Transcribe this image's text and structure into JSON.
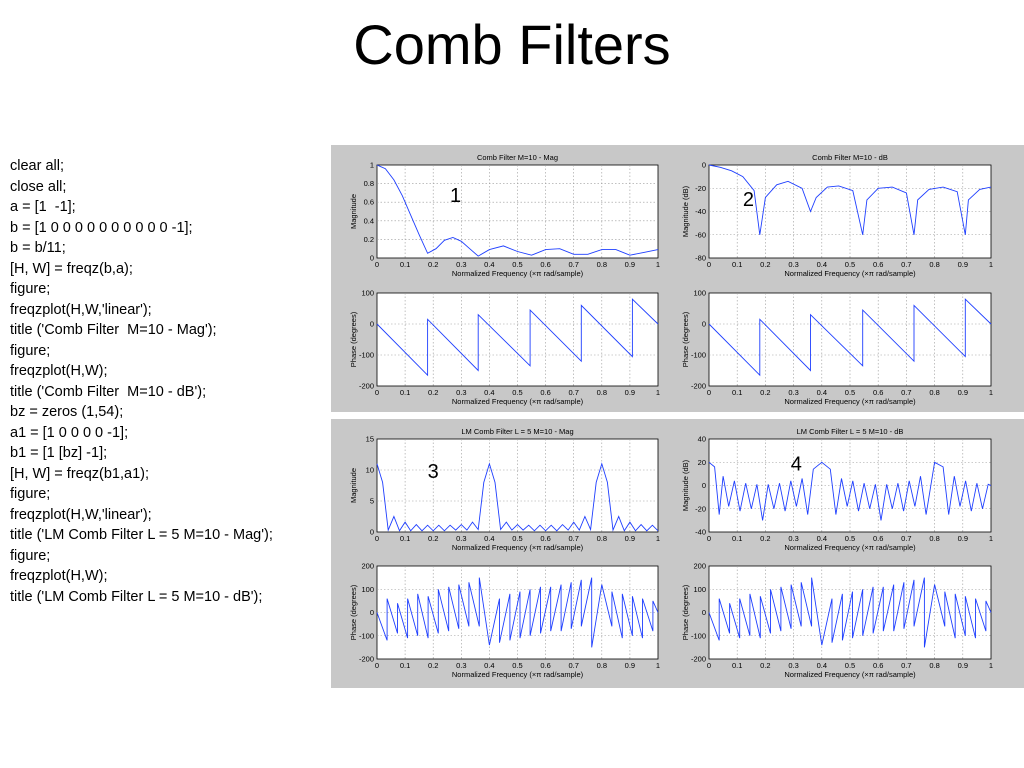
{
  "slide_title": "Comb Filters",
  "code_lines": [
    "clear all;",
    "close all;",
    "a = [1  -1];",
    "b = [1 0 0 0 0 0 0 0 0 0 0 -1];",
    "b = b/11;",
    "[H, W] = freqz(b,a);",
    "figure;",
    "freqzplot(H,W,'linear');",
    "title ('Comb Filter  M=10 - Mag');",
    "figure;",
    "freqzplot(H,W);",
    "title ('Comb Filter  M=10 - dB');",
    "bz = zeros (1,54);",
    "a1 = [1 0 0 0 0 -1];",
    "b1 = [1 [bz] -1];",
    "[H, W] = freqz(b1,a1);",
    "figure;",
    "freqzplot(H,W,'linear');",
    "title ('LM Comb Filter L = 5 M=10 - Mag');",
    "figure;",
    "freqzplot(H,W);",
    "title ('LM Comb Filter L = 5 M=10 - dB');"
  ],
  "colors": {
    "curve": "#1f3fff",
    "panel_bg": "#c8c8c8",
    "grid": "#9a9a9a"
  },
  "chart_data": [
    {
      "type": "line",
      "title": "Comb Filter  M=10 - Mag",
      "xlabel": "Normalized Frequency  (×π rad/sample)",
      "ylabel": "Magnitude",
      "xlim": [
        0,
        1
      ],
      "ylim": [
        0,
        1
      ],
      "xticks": [
        0,
        0.1,
        0.2,
        0.3,
        0.4,
        0.5,
        0.6,
        0.7,
        0.8,
        0.9,
        1
      ],
      "xtick_labels": [
        "0",
        "0.1",
        "0.2",
        "0.3",
        "0.4",
        "0.5",
        "0.6",
        "0.7",
        "0.8",
        "0.9",
        "1"
      ],
      "yticks": [
        0,
        0.2,
        0.4,
        0.6,
        0.8,
        1
      ],
      "ytick_labels": [
        "0",
        "0.2",
        "0.4",
        "0.6",
        "0.8",
        "1"
      ],
      "grid": true,
      "annotation": "1",
      "series": [
        {
          "x": [
            0,
            0.03,
            0.06,
            0.09,
            0.12,
            0.15,
            0.18,
            0.21,
            0.24,
            0.27,
            0.3,
            0.33,
            0.36,
            0.4,
            0.45,
            0.5,
            0.55,
            0.6,
            0.65,
            0.7,
            0.75,
            0.8,
            0.85,
            0.9,
            0.95,
            1
          ],
          "y": [
            1,
            0.96,
            0.84,
            0.67,
            0.46,
            0.25,
            0.05,
            0.1,
            0.19,
            0.22,
            0.18,
            0.1,
            0.02,
            0.09,
            0.13,
            0.07,
            0.03,
            0.09,
            0.1,
            0.04,
            0.04,
            0.09,
            0.09,
            0.03,
            0.06,
            0.09
          ]
        }
      ]
    },
    {
      "type": "line",
      "title": "Comb Filter  M=10 - dB",
      "xlabel": "Normalized Frequency  (×π rad/sample)",
      "ylabel": "Magnitude (dB)",
      "xlim": [
        0,
        1
      ],
      "ylim": [
        -80,
        0
      ],
      "xticks": [
        0,
        0.1,
        0.2,
        0.3,
        0.4,
        0.5,
        0.6,
        0.7,
        0.8,
        0.9,
        1
      ],
      "xtick_labels": [
        "0",
        "0.1",
        "0.2",
        "0.3",
        "0.4",
        "0.5",
        "0.6",
        "0.7",
        "0.8",
        "0.9",
        "1"
      ],
      "yticks": [
        -80,
        -60,
        -40,
        -20,
        0
      ],
      "ytick_labels": [
        "-80",
        "-60",
        "-40",
        "-20",
        "0"
      ],
      "grid": true,
      "annotation": "2",
      "series": [
        {
          "x": [
            0,
            0.04,
            0.08,
            0.12,
            0.16,
            0.18,
            0.2,
            0.24,
            0.28,
            0.33,
            0.36,
            0.38,
            0.42,
            0.46,
            0.51,
            0.545,
            0.56,
            0.6,
            0.65,
            0.7,
            0.727,
            0.74,
            0.78,
            0.83,
            0.88,
            0.909,
            0.92,
            0.96,
            1
          ],
          "y": [
            0,
            -2,
            -5,
            -10,
            -22,
            -60,
            -28,
            -17,
            -14,
            -20,
            -40,
            -28,
            -19,
            -18,
            -22,
            -60,
            -30,
            -20,
            -19,
            -24,
            -60,
            -30,
            -21,
            -19,
            -23,
            -60,
            -30,
            -21,
            -19
          ]
        }
      ]
    },
    {
      "type": "line",
      "title": "",
      "xlabel": "Normalized Frequency  (×π rad/sample)",
      "ylabel": "Phase (degrees)",
      "xlim": [
        0,
        1
      ],
      "ylim": [
        -200,
        100
      ],
      "xticks": [
        0,
        0.1,
        0.2,
        0.3,
        0.4,
        0.5,
        0.6,
        0.7,
        0.8,
        0.9,
        1
      ],
      "xtick_labels": [
        "0",
        "0.1",
        "0.2",
        "0.3",
        "0.4",
        "0.5",
        "0.6",
        "0.7",
        "0.8",
        "0.9",
        "1"
      ],
      "yticks": [
        -200,
        -100,
        0,
        100
      ],
      "ytick_labels": [
        "-200",
        "-100",
        "0",
        "100"
      ],
      "grid": true,
      "series": [
        {
          "x": [
            0,
            0.18,
            0.18,
            0.36,
            0.36,
            0.545,
            0.545,
            0.727,
            0.727,
            0.909,
            0.909,
            1
          ],
          "y": [
            0,
            -165,
            15,
            -150,
            30,
            -135,
            45,
            -120,
            60,
            -105,
            80,
            0
          ]
        }
      ]
    },
    {
      "type": "line",
      "title": "",
      "xlabel": "Normalized Frequency  (×π rad/sample)",
      "ylabel": "Phase (degrees)",
      "xlim": [
        0,
        1
      ],
      "ylim": [
        -200,
        100
      ],
      "xticks": [
        0,
        0.1,
        0.2,
        0.3,
        0.4,
        0.5,
        0.6,
        0.7,
        0.8,
        0.9,
        1
      ],
      "xtick_labels": [
        "0",
        "0.1",
        "0.2",
        "0.3",
        "0.4",
        "0.5",
        "0.6",
        "0.7",
        "0.8",
        "0.9",
        "1"
      ],
      "yticks": [
        -200,
        -100,
        0,
        100
      ],
      "ytick_labels": [
        "-200",
        "-100",
        "0",
        "100"
      ],
      "grid": true,
      "series": [
        {
          "x": [
            0,
            0.18,
            0.18,
            0.36,
            0.36,
            0.545,
            0.545,
            0.727,
            0.727,
            0.909,
            0.909,
            1
          ],
          "y": [
            0,
            -165,
            15,
            -150,
            30,
            -135,
            45,
            -120,
            60,
            -105,
            80,
            0
          ]
        }
      ]
    },
    {
      "type": "line",
      "title": "LM Comb Filter L = 5 M=10 - Mag",
      "xlabel": "Normalized Frequency  (×π rad/sample)",
      "ylabel": "Magnitude",
      "xlim": [
        0,
        1
      ],
      "ylim": [
        0,
        15
      ],
      "xticks": [
        0,
        0.1,
        0.2,
        0.3,
        0.4,
        0.5,
        0.6,
        0.7,
        0.8,
        0.9,
        1
      ],
      "xtick_labels": [
        "0",
        "0.1",
        "0.2",
        "0.3",
        "0.4",
        "0.5",
        "0.6",
        "0.7",
        "0.8",
        "0.9",
        "1"
      ],
      "yticks": [
        0,
        5,
        10,
        15
      ],
      "ytick_labels": [
        "0",
        "5",
        "10",
        "15"
      ],
      "grid": true,
      "annotation": "3",
      "series": [
        {
          "x": [
            0,
            0.02,
            0.04,
            0.06,
            0.08,
            0.1,
            0.12,
            0.14,
            0.16,
            0.18,
            0.2,
            0.22,
            0.24,
            0.26,
            0.28,
            0.3,
            0.32,
            0.34,
            0.36,
            0.38,
            0.4,
            0.42,
            0.44,
            0.46,
            0.48,
            0.5,
            0.52,
            0.54,
            0.56,
            0.58,
            0.6,
            0.62,
            0.64,
            0.66,
            0.68,
            0.7,
            0.72,
            0.74,
            0.76,
            0.78,
            0.8,
            0.82,
            0.84,
            0.86,
            0.88,
            0.9,
            0.92,
            0.94,
            0.96,
            0.98,
            1
          ],
          "y": [
            11,
            8,
            0.3,
            2.5,
            0.2,
            1.6,
            0.2,
            1.2,
            0.2,
            1.1,
            0.2,
            1.1,
            0.2,
            1.1,
            0.3,
            1.2,
            0.3,
            1.6,
            0.4,
            8,
            11,
            8,
            0.4,
            1.6,
            0.3,
            1.2,
            0.3,
            1.1,
            0.2,
            1.1,
            0.2,
            1.1,
            0.2,
            1.2,
            0.3,
            1.6,
            0.3,
            2.5,
            0.4,
            8,
            11,
            8,
            0.3,
            2.5,
            0.2,
            1.6,
            0.2,
            1.2,
            0.2,
            1.1,
            0.2
          ]
        }
      ]
    },
    {
      "type": "line",
      "title": "LM Comb Filter L = 5 M=10 - dB",
      "xlabel": "Normalized Frequency  (×π rad/sample)",
      "ylabel": "Magnitude (dB)",
      "xlim": [
        0,
        1
      ],
      "ylim": [
        -40,
        40
      ],
      "xticks": [
        0,
        0.1,
        0.2,
        0.3,
        0.4,
        0.5,
        0.6,
        0.7,
        0.8,
        0.9,
        1
      ],
      "xtick_labels": [
        "0",
        "0.1",
        "0.2",
        "0.3",
        "0.4",
        "0.5",
        "0.6",
        "0.7",
        "0.8",
        "0.9",
        "1"
      ],
      "yticks": [
        -40,
        -20,
        0,
        20,
        40
      ],
      "ytick_labels": [
        "-40",
        "-20",
        "0",
        "20",
        "40"
      ],
      "grid": true,
      "annotation": "4",
      "series": [
        {
          "x": [
            0,
            0.02,
            0.036,
            0.05,
            0.07,
            0.09,
            0.11,
            0.13,
            0.15,
            0.17,
            0.19,
            0.21,
            0.23,
            0.25,
            0.27,
            0.29,
            0.31,
            0.33,
            0.35,
            0.37,
            0.4,
            0.43,
            0.45,
            0.47,
            0.49,
            0.51,
            0.53,
            0.55,
            0.57,
            0.59,
            0.61,
            0.63,
            0.65,
            0.67,
            0.69,
            0.71,
            0.73,
            0.75,
            0.77,
            0.8,
            0.83,
            0.85,
            0.87,
            0.89,
            0.91,
            0.93,
            0.95,
            0.97,
            0.99,
            1
          ],
          "y": [
            20,
            16,
            -25,
            8,
            -18,
            4,
            -22,
            2,
            -20,
            1,
            -30,
            1,
            -20,
            2,
            -22,
            4,
            -18,
            6,
            -25,
            14,
            20,
            14,
            -25,
            6,
            -18,
            4,
            -22,
            2,
            -20,
            1,
            -30,
            1,
            -20,
            2,
            -22,
            4,
            -18,
            8,
            -25,
            20,
            16,
            -25,
            8,
            -18,
            4,
            -22,
            2,
            -20,
            1,
            0
          ]
        }
      ]
    },
    {
      "type": "line",
      "title": "",
      "xlabel": "Normalized Frequency  (×π rad/sample)",
      "ylabel": "Phase (degrees)",
      "xlim": [
        0,
        1
      ],
      "ylim": [
        -200,
        200
      ],
      "xticks": [
        0,
        0.1,
        0.2,
        0.3,
        0.4,
        0.5,
        0.6,
        0.7,
        0.8,
        0.9,
        1
      ],
      "xtick_labels": [
        "0",
        "0.1",
        "0.2",
        "0.3",
        "0.4",
        "0.5",
        "0.6",
        "0.7",
        "0.8",
        "0.9",
        "1"
      ],
      "yticks": [
        -200,
        -100,
        0,
        100,
        200
      ],
      "ytick_labels": [
        "-200",
        "-100",
        "0",
        "100",
        "200"
      ],
      "grid": true,
      "series": [
        {
          "x": [
            0,
            0.036,
            0.036,
            0.073,
            0.073,
            0.109,
            0.109,
            0.145,
            0.145,
            0.182,
            0.182,
            0.218,
            0.218,
            0.255,
            0.255,
            0.291,
            0.291,
            0.327,
            0.327,
            0.364,
            0.364,
            0.4,
            0.436,
            0.436,
            0.473,
            0.473,
            0.509,
            0.509,
            0.545,
            0.545,
            0.582,
            0.582,
            0.618,
            0.618,
            0.655,
            0.655,
            0.691,
            0.691,
            0.727,
            0.727,
            0.764,
            0.764,
            0.8,
            0.836,
            0.836,
            0.873,
            0.873,
            0.909,
            0.909,
            0.945,
            0.945,
            0.982,
            0.982,
            1
          ],
          "y": [
            0,
            -120,
            60,
            -90,
            40,
            -110,
            60,
            -100,
            80,
            -110,
            70,
            -90,
            100,
            -80,
            110,
            -70,
            120,
            -60,
            130,
            -60,
            150,
            -140,
            60,
            -130,
            80,
            -120,
            90,
            -110,
            100,
            -100,
            110,
            -90,
            110,
            -80,
            120,
            -80,
            130,
            -70,
            140,
            -60,
            150,
            -150,
            120,
            -60,
            90,
            -110,
            80,
            -100,
            70,
            -110,
            60,
            -80,
            50,
            0
          ]
        }
      ]
    },
    {
      "type": "line",
      "title": "",
      "xlabel": "Normalized Frequency  (×π rad/sample)",
      "ylabel": "Phase (degrees)",
      "xlim": [
        0,
        1
      ],
      "ylim": [
        -200,
        200
      ],
      "xticks": [
        0,
        0.1,
        0.2,
        0.3,
        0.4,
        0.5,
        0.6,
        0.7,
        0.8,
        0.9,
        1
      ],
      "xtick_labels": [
        "0",
        "0.1",
        "0.2",
        "0.3",
        "0.4",
        "0.5",
        "0.6",
        "0.7",
        "0.8",
        "0.9",
        "1"
      ],
      "yticks": [
        -200,
        -100,
        0,
        100,
        200
      ],
      "ytick_labels": [
        "-200",
        "-100",
        "0",
        "100",
        "200"
      ],
      "grid": true,
      "series": [
        {
          "x": [
            0,
            0.036,
            0.036,
            0.073,
            0.073,
            0.109,
            0.109,
            0.145,
            0.145,
            0.182,
            0.182,
            0.218,
            0.218,
            0.255,
            0.255,
            0.291,
            0.291,
            0.327,
            0.327,
            0.364,
            0.364,
            0.4,
            0.436,
            0.436,
            0.473,
            0.473,
            0.509,
            0.509,
            0.545,
            0.545,
            0.582,
            0.582,
            0.618,
            0.618,
            0.655,
            0.655,
            0.691,
            0.691,
            0.727,
            0.727,
            0.764,
            0.764,
            0.8,
            0.836,
            0.836,
            0.873,
            0.873,
            0.909,
            0.909,
            0.945,
            0.945,
            0.982,
            0.982,
            1
          ],
          "y": [
            0,
            -120,
            60,
            -90,
            40,
            -110,
            60,
            -100,
            80,
            -110,
            70,
            -90,
            100,
            -80,
            110,
            -70,
            120,
            -60,
            130,
            -60,
            150,
            -140,
            60,
            -130,
            80,
            -120,
            90,
            -110,
            100,
            -100,
            110,
            -90,
            110,
            -80,
            120,
            -80,
            130,
            -70,
            140,
            -60,
            150,
            -150,
            120,
            -60,
            90,
            -110,
            80,
            -100,
            70,
            -110,
            60,
            -80,
            50,
            0
          ]
        }
      ]
    }
  ]
}
